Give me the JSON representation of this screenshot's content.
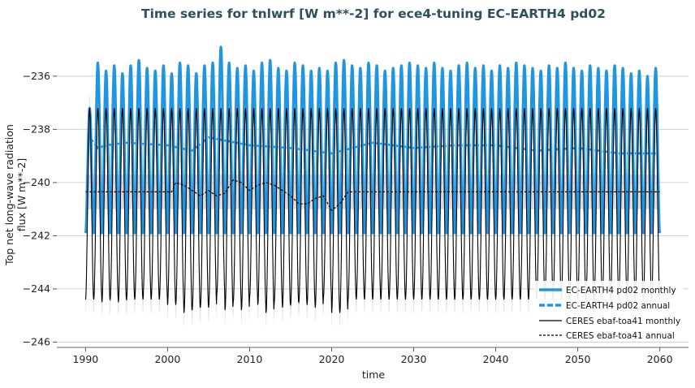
{
  "chart_data": {
    "type": "line",
    "title": "Time series for tnlwrf [W m**-2] for ece4-tuning EC-EARTH4 pd02",
    "xlabel": "time",
    "ylabel_lines": [
      "Top net long-wave radiation",
      "flux [W m**-2]"
    ],
    "xlim": [
      1986.5,
      2063.5
    ],
    "ylim": [
      -246.2,
      -234.6
    ],
    "x_ticks": [
      1990,
      2000,
      2010,
      2020,
      2030,
      2040,
      2050,
      2060
    ],
    "x_tick_labels": [
      "1990",
      "2000",
      "2010",
      "2020",
      "2030",
      "2040",
      "2050",
      "2060"
    ],
    "y_ticks": [
      -246,
      -244,
      -242,
      -240,
      -238,
      -236
    ],
    "y_tick_labels": [
      "−246",
      "−244",
      "−242",
      "−240",
      "−238",
      "−236"
    ],
    "grid": "horizontal",
    "legend_position": "bottom-right",
    "colors": {
      "model": "#2196e0",
      "obs": "#000000",
      "obs_band": "#c8c8c8",
      "model_band": "#b8c0cc",
      "title": "#2f4f5a"
    },
    "series": [
      {
        "name": "EC-EARTH4 pd02 monthly",
        "style": "solid-thick",
        "x_range": [
          1990,
          2060
        ],
        "seasonal_cycle": {
          "peak_month_frac": 0.55,
          "max_values_sample": [
            -237.2,
            -235.5,
            -235.8,
            -235.6,
            -235.9,
            -235.6,
            -235.4,
            -235.7,
            -235.8,
            -235.6,
            -235.9,
            -235.5,
            -235.6,
            -235.9,
            -235.6,
            -235.5,
            -234.9,
            -235.5,
            -235.7,
            -235.6,
            -235.8,
            -235.5,
            -235.4,
            -235.7,
            -235.8,
            -235.5,
            -235.6,
            -235.8,
            -235.7,
            -235.8,
            -235.5,
            -235.4,
            -235.6,
            -235.7,
            -235.5,
            -235.6,
            -235.8,
            -235.7,
            -235.6,
            -235.5,
            -235.6,
            -235.7,
            -235.5,
            -235.7,
            -235.8,
            -235.6,
            -235.5,
            -235.7,
            -235.6,
            -235.8,
            -235.6,
            -235.7,
            -235.5,
            -235.6,
            -235.7,
            -235.8,
            -235.6,
            -235.7,
            -235.5,
            -235.7,
            -235.8,
            -235.6,
            -235.7,
            -235.8,
            -235.6,
            -235.7,
            -235.9,
            -235.8,
            -236.0,
            -235.7,
            -236.6
          ],
          "min_value": -241.9
        }
      },
      {
        "name": "EC-EARTH4 pd02 annual",
        "style": "dashed-thick",
        "x": [
          1990.5,
          1991.5,
          1992.5,
          1995,
          2000,
          2003,
          2005,
          2010,
          2015,
          2020,
          2025,
          2030,
          2035,
          2040,
          2045,
          2050,
          2055,
          2059.5
        ],
        "y": [
          -238.3,
          -238.7,
          -238.6,
          -238.5,
          -238.6,
          -238.8,
          -238.3,
          -238.6,
          -238.7,
          -238.9,
          -238.5,
          -238.7,
          -238.6,
          -238.6,
          -238.8,
          -238.7,
          -238.9,
          -238.9
        ]
      },
      {
        "name": "CERES ebaf-toa41 monthly",
        "style": "solid-thin",
        "x_range": [
          1990,
          2060
        ],
        "seasonal_cycle": {
          "max_value": -237.2,
          "min_values_sample": [
            -244.4,
            -244.4,
            -244.5,
            -244.4,
            -244.5,
            -244.4,
            -244.4,
            -244.4,
            -244.4,
            -244.4,
            -244.6,
            -244.6,
            -244.9,
            -244.8,
            -244.7,
            -244.7,
            -244.2,
            -244.8,
            -244.5,
            -244.8,
            -244.3,
            -244.6,
            -244.9,
            -244.5,
            -244.7,
            -244.6,
            -244.5,
            -244.6,
            -244.7,
            -244.3,
            -244.9,
            -244.9,
            -244.4,
            -244.4,
            -244.4,
            -244.4,
            -244.4,
            -244.4,
            -244.4,
            -244.4,
            -244.4,
            -244.4,
            -244.4,
            -244.4,
            -244.4,
            -244.4,
            -244.4,
            -244.4,
            -244.4,
            -244.4,
            -244.4,
            -244.4,
            -244.4,
            -244.4,
            -244.4,
            -244.4,
            -244.4,
            -244.4,
            -244.4,
            -244.4,
            -244.4,
            -244.4,
            -244.4,
            -244.4,
            -244.4,
            -244.4,
            -244.4,
            -244.4,
            -244.4,
            -244.4
          ]
        }
      },
      {
        "name": "CERES ebaf-toa41 annual",
        "style": "dashed-thin",
        "x": [
          1990,
          2000.5,
          2001,
          2002,
          2003,
          2004,
          2005,
          2006,
          2007,
          2008,
          2009,
          2010,
          2011,
          2012,
          2013,
          2014,
          2015,
          2016,
          2017,
          2018,
          2019,
          2020,
          2021,
          2022,
          2060
        ],
        "y": [
          -240.35,
          -240.35,
          -240.0,
          -240.1,
          -240.3,
          -240.5,
          -240.3,
          -240.5,
          -240.4,
          -239.9,
          -240.0,
          -240.3,
          -240.1,
          -240.0,
          -240.1,
          -240.3,
          -240.5,
          -240.8,
          -240.8,
          -240.6,
          -240.5,
          -241.05,
          -240.8,
          -240.35,
          -240.35
        ]
      }
    ]
  }
}
